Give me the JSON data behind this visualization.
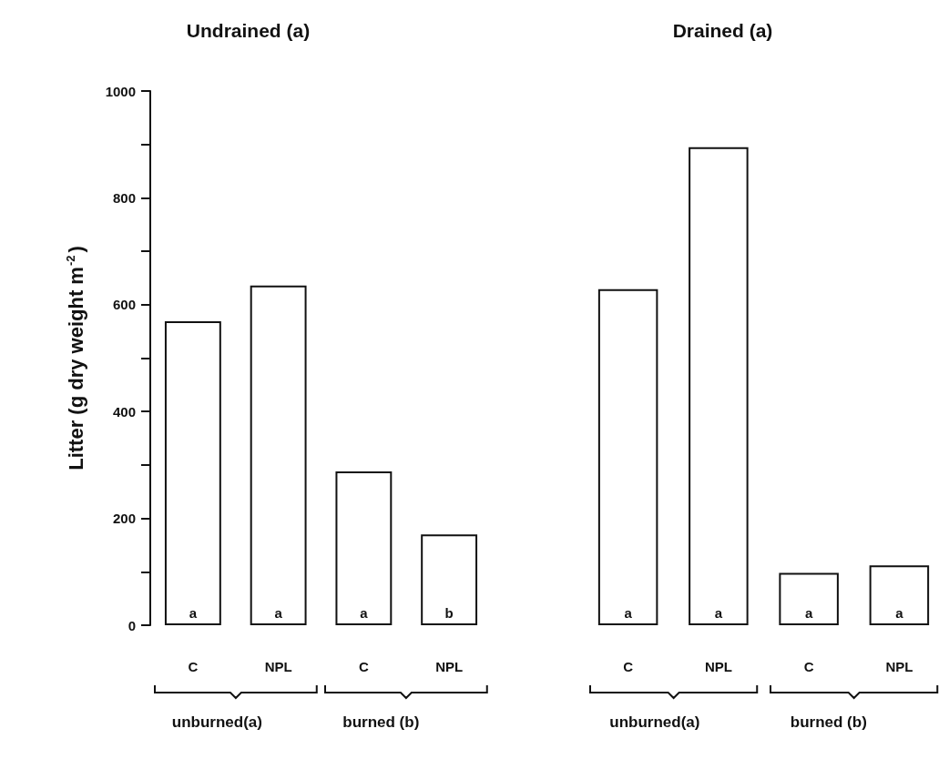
{
  "chart_data": [
    {
      "type": "bar",
      "title": "Undrained (a)",
      "ylabel": "Litter (g dry weight m$^{-2}$)",
      "categories": [
        "C",
        "NPL",
        "C",
        "NPL"
      ],
      "values": [
        569,
        636,
        288,
        170
      ],
      "value_labels": [
        "a",
        "a",
        "a",
        "b"
      ],
      "color": "#ffffff",
      "ylim": [
        0,
        1000
      ],
      "yticks": [
        0,
        {
          "value": 100,
          "label": null
        },
        200,
        {
          "value": 300,
          "label": null
        },
        400,
        {
          "value": 500,
          "label": null
        },
        600,
        {
          "value": 700,
          "label": null
        },
        800,
        {
          "value": 900,
          "label": null
        },
        1000
      ],
      "annotations": [
        "unburned(a)",
        "burned (b)"
      ]
    },
    {
      "type": "bar",
      "title": "Drained (a)",
      "categories": [
        "C",
        "NPL",
        "C",
        "NPL"
      ],
      "values": [
        629,
        895,
        98,
        112
      ],
      "value_labels": [
        "a",
        "a",
        "a",
        "a"
      ],
      "color": "#ffffff",
      "ylim": [
        0,
        1000
      ],
      "tick_labels": "x",
      "annotations": [
        "unburned(a)",
        "burned (b)"
      ]
    }
  ]
}
